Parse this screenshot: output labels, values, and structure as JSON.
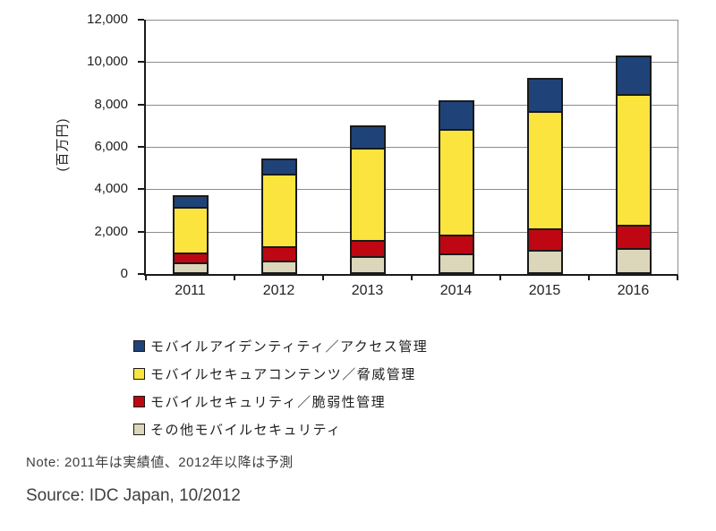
{
  "chart_data": {
    "type": "bar",
    "stacked": true,
    "y_axis_title": "(百万円)",
    "categories": [
      "2011",
      "2012",
      "2013",
      "2014",
      "2015",
      "2016"
    ],
    "series": [
      {
        "name": "その他モバイルセキュリティ",
        "color": "#DCD6BB",
        "values": [
          450,
          500,
          700,
          850,
          1000,
          1100
        ]
      },
      {
        "name": "モバイルセキュリティ／脆弱性管理",
        "color": "#BE0712",
        "values": [
          400,
          650,
          750,
          850,
          1000,
          1050
        ]
      },
      {
        "name": "モバイルセキュアコンテンツ／脅威管理",
        "color": "#FBE43E",
        "values": [
          2350,
          3600,
          4550,
          5150,
          5700,
          6350
        ]
      },
      {
        "name": "モバイルアイデンティティ／アクセス管理",
        "color": "#1F4379",
        "values": [
          500,
          700,
          1000,
          1350,
          1550,
          1800
        ]
      }
    ],
    "totals": [
      3700,
      5450,
      7000,
      8200,
      9250,
      10300
    ],
    "ylim": [
      0,
      12000
    ],
    "y_tick_step": 2000,
    "y_ticks": [
      "0",
      "2,000",
      "4,000",
      "6,000",
      "8,000",
      "10,000",
      "12,000"
    ],
    "grid": true,
    "legend_position": "bottom-left",
    "legend_order": [
      3,
      2,
      1,
      0
    ]
  },
  "note": {
    "text": "Note: 2011年は実績値、2012年以降は予測"
  },
  "source": {
    "text": "Source: IDC Japan, 10/2012"
  }
}
